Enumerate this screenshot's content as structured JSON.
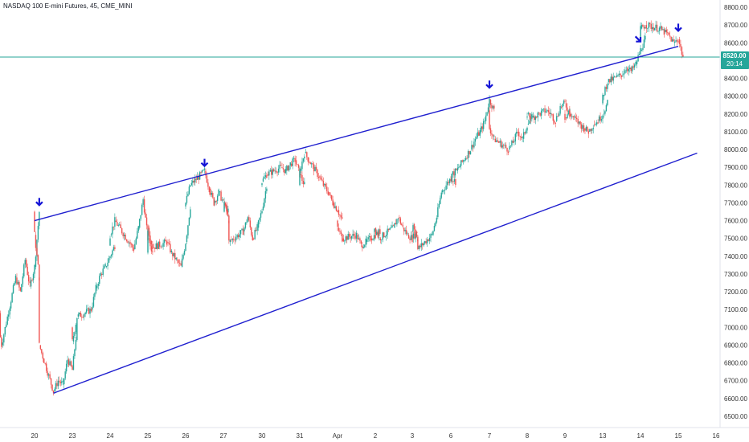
{
  "title": "NASDAQ 100 E-mini Futures, 45, CME_MINI",
  "colors": {
    "up": "#26a69a",
    "down": "#ef5350",
    "trendline": "#1f1fcf",
    "arrow": "#1414d6",
    "hline": "#26a69a",
    "price_tag": "#26a69a"
  },
  "price_tag": {
    "value": "8520.00",
    "countdown": "20:14"
  },
  "chart_data": {
    "type": "candlestick",
    "title": "NASDAQ 100 E-mini Futures, 45, CME_MINI",
    "xlabel": "",
    "ylabel": "",
    "ylim": [
      6450,
      8830
    ],
    "grid": false,
    "y_ticks": [
      "6500.00",
      "6600.00",
      "6700.00",
      "6800.00",
      "6900.00",
      "7000.00",
      "7100.00",
      "7200.00",
      "7300.00",
      "7400.00",
      "7500.00",
      "7600.00",
      "7700.00",
      "7800.00",
      "7900.00",
      "8000.00",
      "8100.00",
      "8200.00",
      "8300.00",
      "8400.00",
      "8500.00",
      "8600.00",
      "8700.00",
      "8800.00"
    ],
    "x_ticks": [
      "20",
      "23",
      "24",
      "25",
      "26",
      "27",
      "30",
      "31",
      "Apr",
      "2",
      "3",
      "6",
      "7",
      "8",
      "9",
      "13",
      "14",
      "15",
      "16"
    ],
    "current_price": 8520,
    "trendlines": [
      {
        "name": "upper",
        "from": [
          "Mar 20 12:00",
          7600
        ],
        "to": [
          "Apr 15 12:00",
          8580
        ]
      },
      {
        "name": "lower",
        "from": [
          "Mar 23 00:00",
          6630
        ],
        "to": [
          "Apr 16 00:00",
          7980
        ]
      }
    ],
    "touch_arrows": [
      {
        "date": "Mar 20 15:00",
        "price": 7660,
        "direction": "down"
      },
      {
        "date": "Mar 27 00:00",
        "price": 7880,
        "direction": "down"
      },
      {
        "date": "Apr 7 12:00",
        "price": 8320,
        "direction": "down"
      },
      {
        "date": "Apr 14 12:00",
        "price": 8580,
        "direction": "down-right"
      },
      {
        "date": "Apr 15 12:00",
        "price": 8640,
        "direction": "down"
      }
    ],
    "price_path": [
      [
        "Mar 19 15:00",
        7200
      ],
      [
        "Mar 19 18:00",
        7080
      ],
      [
        "Mar 19 21:00",
        6900
      ],
      [
        "Mar 20 00:00",
        7280
      ],
      [
        "Mar 20 03:00",
        7200
      ],
      [
        "Mar 20 06:00",
        7380
      ],
      [
        "Mar 20 09:00",
        7230
      ],
      [
        "Mar 20 12:00",
        7340
      ],
      [
        "Mar 20 15:00",
        7650
      ],
      [
        "Mar 20 18:00",
        7520
      ],
      [
        "Mar 20 21:00",
        7280
      ],
      [
        "Mar 22 21:00",
        6900
      ],
      [
        "Mar 23 00:00",
        6640
      ],
      [
        "Mar 23 03:00",
        6700
      ],
      [
        "Mar 23 06:00",
        6680
      ],
      [
        "Mar 23 09:00",
        6820
      ],
      [
        "Mar 23 12:00",
        6760
      ],
      [
        "Mar 23 15:00",
        7000
      ],
      [
        "Mar 23 18:00",
        6920
      ],
      [
        "Mar 23 21:00",
        7060
      ],
      [
        "Mar 24 00:00",
        7100
      ],
      [
        "Mar 24 03:00",
        7220
      ],
      [
        "Mar 24 06:00",
        7300
      ],
      [
        "Mar 24 09:00",
        7340
      ],
      [
        "Mar 24 12:00",
        7400
      ],
      [
        "Mar 24 15:00",
        7460
      ],
      [
        "Mar 24 18:00",
        7520
      ],
      [
        "Mar 24 21:00",
        7600
      ],
      [
        "Mar 25 00:00",
        7480
      ],
      [
        "Mar 25 03:00",
        7440
      ],
      [
        "Mar 25 06:00",
        7560
      ],
      [
        "Mar 25 09:00",
        7720
      ],
      [
        "Mar 25 12:00",
        7500
      ],
      [
        "Mar 25 15:00",
        7420
      ],
      [
        "Mar 25 18:00",
        7560
      ],
      [
        "Mar 25 21:00",
        7450
      ],
      [
        "Mar 26 00:00",
        7480
      ],
      [
        "Mar 26 03:00",
        7420
      ],
      [
        "Mar 26 06:00",
        7380
      ],
      [
        "Mar 26 09:00",
        7340
      ],
      [
        "Mar 26 12:00",
        7480
      ],
      [
        "Mar 26 15:00",
        7680
      ],
      [
        "Mar 26 18:00",
        7700
      ],
      [
        "Mar 26 21:00",
        7800
      ],
      [
        "Mar 27 00:00",
        7880
      ],
      [
        "Mar 27 03:00",
        7780
      ],
      [
        "Mar 27 06:00",
        7700
      ],
      [
        "Mar 27 09:00",
        7760
      ],
      [
        "Mar 27 12:00",
        7700
      ],
      [
        "Mar 27 15:00",
        7650
      ],
      [
        "Mar 27 18:00",
        7700
      ],
      [
        "Mar 27 21:00",
        7600
      ],
      [
        "Mar 29 21:00",
        7480
      ],
      [
        "Mar 30 00:00",
        7540
      ],
      [
        "Mar 30 03:00",
        7620
      ],
      [
        "Mar 30 06:00",
        7500
      ],
      [
        "Mar 30 09:00",
        7560
      ],
      [
        "Mar 30 12:00",
        7660
      ],
      [
        "Mar 30 15:00",
        7800
      ],
      [
        "Mar 30 18:00",
        7820
      ],
      [
        "Mar 30 21:00",
        7860
      ],
      [
        "Mar 31 00:00",
        7900
      ],
      [
        "Mar 31 03:00",
        7880
      ],
      [
        "Mar 31 06:00",
        7920
      ],
      [
        "Mar 31 09:00",
        7940
      ],
      [
        "Mar 31 12:00",
        7860
      ],
      [
        "Mar 31 15:00",
        7800
      ],
      [
        "Mar 31 18:00",
        7880
      ],
      [
        "Mar 31 21:00",
        7980
      ],
      [
        "Apr 1 00:00",
        7850
      ],
      [
        "Apr 1 03:00",
        7800
      ],
      [
        "Apr 1 06:00",
        7760
      ],
      [
        "Apr 1 09:00",
        7700
      ],
      [
        "Apr 1 12:00",
        7660
      ],
      [
        "Apr 1 15:00",
        7600
      ],
      [
        "Apr 1 18:00",
        7560
      ],
      [
        "Apr 1 21:00",
        7500
      ],
      [
        "Apr 2 00:00",
        7520
      ],
      [
        "Apr 2 03:00",
        7460
      ],
      [
        "Apr 2 06:00",
        7480
      ],
      [
        "Apr 2 09:00",
        7500
      ],
      [
        "Apr 2 12:00",
        7520
      ],
      [
        "Apr 2 15:00",
        7540
      ],
      [
        "Apr 2 18:00",
        7560
      ],
      [
        "Apr 2 21:00",
        7500
      ],
      [
        "Apr 3 00:00",
        7560
      ],
      [
        "Apr 3 03:00",
        7620
      ],
      [
        "Apr 3 06:00",
        7560
      ],
      [
        "Apr 3 09:00",
        7520
      ],
      [
        "Apr 3 12:00",
        7500
      ],
      [
        "Apr 3 15:00",
        7540
      ],
      [
        "Apr 3 18:00",
        7580
      ],
      [
        "Apr 3 21:00",
        7500
      ],
      [
        "Apr 5 21:00",
        7440
      ],
      [
        "Apr 6 00:00",
        7520
      ],
      [
        "Apr 6 03:00",
        7620
      ],
      [
        "Apr 6 06:00",
        7760
      ],
      [
        "Apr 6 09:00",
        7800
      ],
      [
        "Apr 6 12:00",
        7840
      ],
      [
        "Apr 6 15:00",
        7820
      ],
      [
        "Apr 6 18:00",
        7860
      ],
      [
        "Apr 6 21:00",
        7880
      ],
      [
        "Apr 7 00:00",
        8000
      ],
      [
        "Apr 7 03:00",
        8060
      ],
      [
        "Apr 7 06:00",
        8100
      ],
      [
        "Apr 7 09:00",
        8160
      ],
      [
        "Apr 7 12:00",
        8280
      ],
      [
        "Apr 7 15:00",
        8220
      ],
      [
        "Apr 7 18:00",
        8120
      ],
      [
        "Apr 7 21:00",
        8060
      ],
      [
        "Apr 8 00:00",
        8000
      ],
      [
        "Apr 8 03:00",
        8040
      ],
      [
        "Apr 8 06:00",
        8100
      ],
      [
        "Apr 8 09:00",
        8060
      ],
      [
        "Apr 8 12:00",
        8140
      ],
      [
        "Apr 8 15:00",
        8180
      ],
      [
        "Apr 8 18:00",
        8200
      ],
      [
        "Apr 8 21:00",
        8180
      ],
      [
        "Apr 9 00:00",
        8220
      ],
      [
        "Apr 9 03:00",
        8200
      ],
      [
        "Apr 9 06:00",
        8160
      ],
      [
        "Apr 9 09:00",
        8240
      ],
      [
        "Apr 9 12:00",
        8260
      ],
      [
        "Apr 9 15:00",
        8200
      ],
      [
        "Apr 9 18:00",
        8180
      ],
      [
        "Apr 9 21:00",
        8220
      ],
      [
        "Apr 12 21:00",
        8200
      ],
      [
        "Apr 13 00:00",
        8120
      ],
      [
        "Apr 13 03:00",
        8100
      ],
      [
        "Apr 13 06:00",
        8140
      ],
      [
        "Apr 13 09:00",
        8160
      ],
      [
        "Apr 13 12:00",
        8200
      ],
      [
        "Apr 13 15:00",
        8260
      ],
      [
        "Apr 13 18:00",
        8300
      ],
      [
        "Apr 13 21:00",
        8380
      ],
      [
        "Apr 14 00:00",
        8420
      ],
      [
        "Apr 14 03:00",
        8460
      ],
      [
        "Apr 14 06:00",
        8440
      ],
      [
        "Apr 14 09:00",
        8480
      ],
      [
        "Apr 14 12:00",
        8560
      ],
      [
        "Apr 14 15:00",
        8620
      ],
      [
        "Apr 14 18:00",
        8680
      ],
      [
        "Apr 14 21:00",
        8700
      ],
      [
        "Apr 15 00:00",
        8680
      ],
      [
        "Apr 15 03:00",
        8660
      ],
      [
        "Apr 15 06:00",
        8640
      ],
      [
        "Apr 15 09:00",
        8600
      ],
      [
        "Apr 15 12:00",
        8620
      ],
      [
        "Apr 15 15:00",
        8520
      ]
    ]
  }
}
